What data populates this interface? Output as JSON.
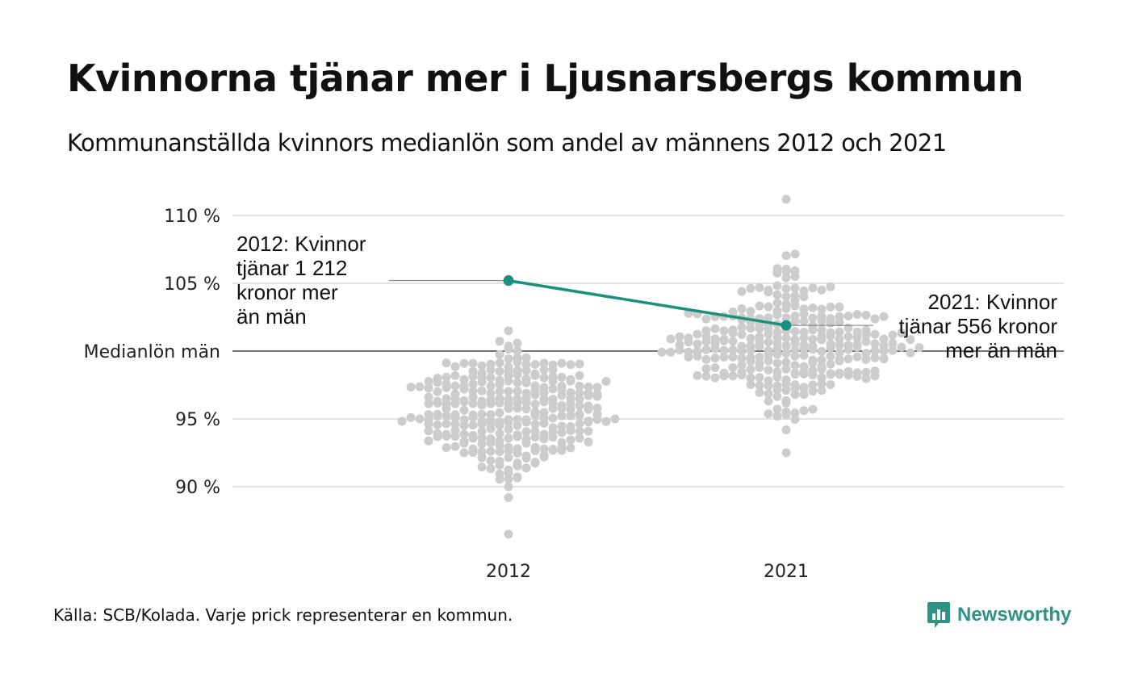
{
  "title": "Kvinnorna tjänar mer i Ljusnarsbergs kommun",
  "subtitle": "Kommunanställda kvinnors medianlön som andel av männens 2012 och 2021",
  "source": "Källa: SCB/Kolada. Varje prick representerar en kommun.",
  "brand": "Newsworthy",
  "colors": {
    "highlight": "#1a9080",
    "dots": "#cccccc",
    "grid": "#e3e3e3",
    "reference_line": "#222222",
    "brand": "#2f9286"
  },
  "chart_data": {
    "type": "scatter",
    "subtype": "beeswarm",
    "categories": [
      "2012",
      "2021"
    ],
    "ylim": [
      86,
      111.5
    ],
    "grid": true,
    "y_ticks": [
      {
        "value": 110,
        "label": "110 %"
      },
      {
        "value": 105,
        "label": "105 %"
      },
      {
        "value": 100,
        "label": "Medianlön män"
      },
      {
        "value": 95,
        "label": "95 %"
      },
      {
        "value": 90,
        "label": "90 %"
      }
    ],
    "reference_value": 100,
    "distributions": [
      {
        "category": "2012",
        "min": 86.5,
        "max": 105.3,
        "center": 95.5,
        "count": 290
      },
      {
        "category": "2021",
        "min": 92.5,
        "max": 111.2,
        "center": 100.5,
        "count": 290
      }
    ],
    "highlight": {
      "name": "Ljusnarsbergs kommun",
      "values": [
        {
          "x": "2012",
          "y": 105.2
        },
        {
          "x": "2021",
          "y": 101.9
        }
      ]
    },
    "annotations": [
      {
        "x": "2012",
        "lines": [
          "2012: Kvinnor",
          "tjänar 1 212",
          "kronor mer",
          "än män"
        ]
      },
      {
        "x": "2021",
        "lines": [
          "2021: Kvinnor",
          "tjänar 556 kronor",
          "mer än män"
        ]
      }
    ]
  }
}
